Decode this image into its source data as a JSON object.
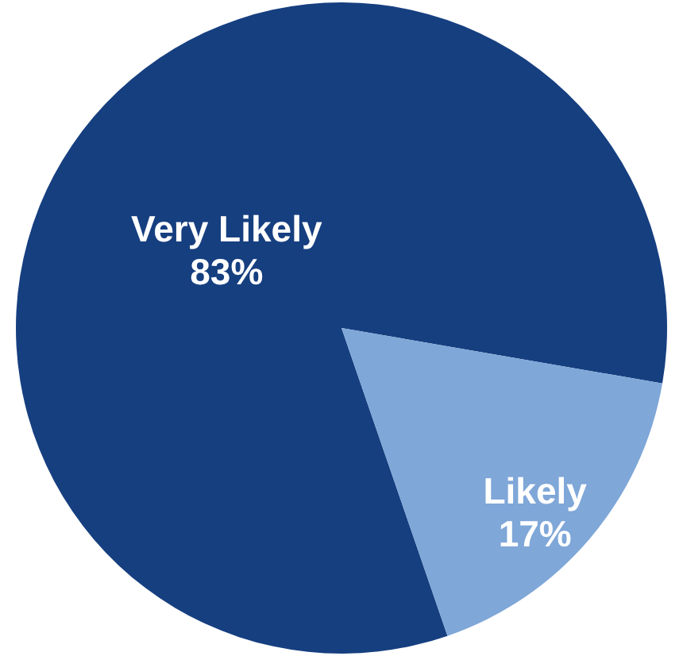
{
  "chart_data": {
    "type": "pie",
    "categories": [
      "Very Likely",
      "Likely"
    ],
    "values": [
      83,
      17
    ],
    "colors": [
      "#163f80",
      "#7fa7d8"
    ],
    "value_labels": [
      "83%",
      "17%"
    ]
  }
}
